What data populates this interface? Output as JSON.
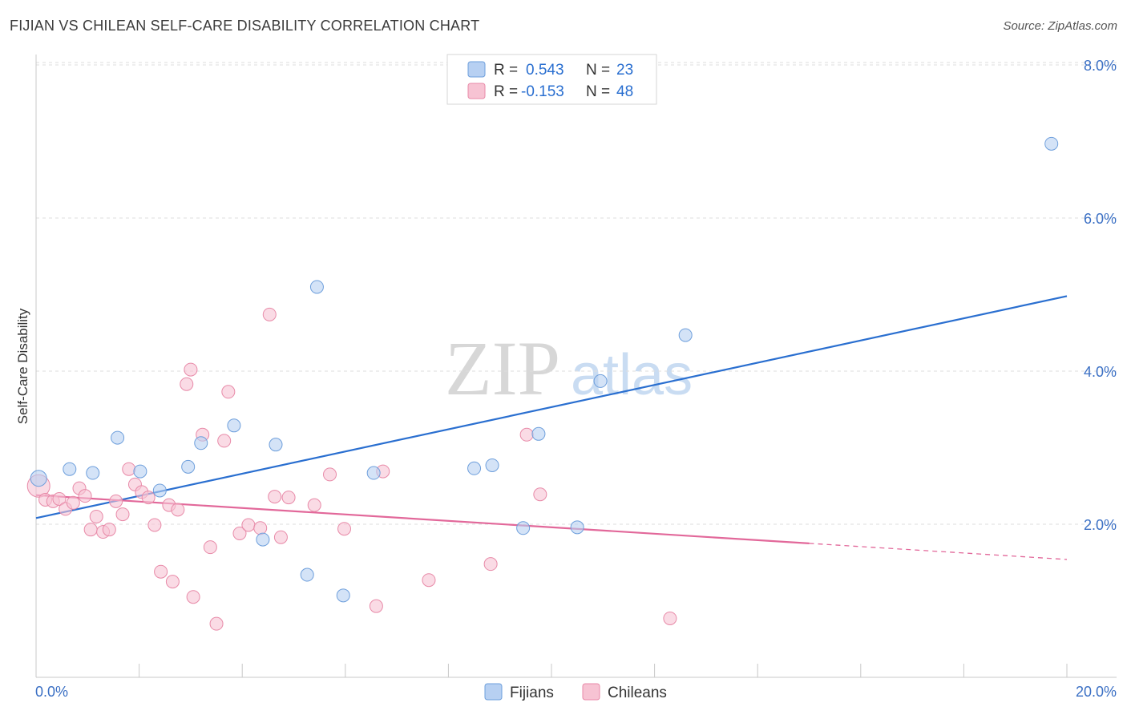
{
  "title": "FIJIAN VS CHILEAN SELF-CARE DISABILITY CORRELATION CHART",
  "source": "Source: ZipAtlas.com",
  "watermark": {
    "zip": "ZIP",
    "atlas": "atlas"
  },
  "colors": {
    "fijians_fill": "#b7d0f2",
    "fijians_stroke": "#6e9fdc",
    "fijians_line": "#2a6fd0",
    "chileans_fill": "#f7c3d3",
    "chileans_stroke": "#e88aa8",
    "chileans_line": "#e2689a",
    "tick_label": "#3a6fc4",
    "grid": "#dedede"
  },
  "legend_top": [
    {
      "r_label": "R = ",
      "r_value": "0.543",
      "n_label": "N = ",
      "n_value": "23"
    },
    {
      "r_label": "R = ",
      "r_value": "-0.153",
      "n_label": "N = ",
      "n_value": "48"
    }
  ],
  "chart_data": {
    "type": "scatter",
    "xlabel": "",
    "ylabel": "Self-Care Disability",
    "xlim": [
      0,
      20
    ],
    "ylim": [
      0,
      8.3
    ],
    "x_tick_labels": [
      "0.0%",
      "20.0%"
    ],
    "y_ticks": [
      2,
      4,
      6,
      8
    ],
    "y_tick_labels": [
      "2.0%",
      "4.0%",
      "6.0%",
      "8.0%"
    ],
    "grid": "horizontal dashed",
    "legend_placement": "bottom-center",
    "series": [
      {
        "name": "Fijians",
        "points": [
          [
            0.05,
            2.6
          ],
          [
            0.65,
            2.72
          ],
          [
            1.1,
            2.67
          ],
          [
            1.58,
            3.13
          ],
          [
            2.02,
            2.69
          ],
          [
            2.4,
            2.44
          ],
          [
            2.95,
            2.75
          ],
          [
            3.2,
            3.06
          ],
          [
            3.84,
            3.29
          ],
          [
            4.4,
            1.8
          ],
          [
            4.65,
            3.04
          ],
          [
            5.45,
            5.1
          ],
          [
            5.26,
            1.34
          ],
          [
            5.96,
            1.07
          ],
          [
            6.55,
            2.67
          ],
          [
            8.5,
            2.73
          ],
          [
            8.85,
            2.77
          ],
          [
            9.45,
            1.95
          ],
          [
            9.75,
            3.18
          ],
          [
            10.5,
            1.96
          ],
          [
            10.95,
            3.87
          ],
          [
            12.6,
            4.47
          ],
          [
            19.7,
            6.97
          ]
        ],
        "trend": {
          "x": [
            0,
            20
          ],
          "y": [
            2.08,
            4.98
          ]
        }
      },
      {
        "name": "Chileans",
        "points": [
          [
            0.05,
            2.5
          ],
          [
            0.18,
            2.32
          ],
          [
            0.33,
            2.3
          ],
          [
            0.45,
            2.33
          ],
          [
            0.57,
            2.2
          ],
          [
            0.72,
            2.28
          ],
          [
            0.84,
            2.47
          ],
          [
            0.95,
            2.37
          ],
          [
            1.06,
            1.93
          ],
          [
            1.17,
            2.1
          ],
          [
            1.3,
            1.9
          ],
          [
            1.42,
            1.93
          ],
          [
            1.55,
            2.3
          ],
          [
            1.68,
            2.13
          ],
          [
            1.8,
            2.72
          ],
          [
            1.92,
            2.52
          ],
          [
            2.05,
            2.42
          ],
          [
            2.18,
            2.35
          ],
          [
            2.3,
            1.99
          ],
          [
            2.42,
            1.38
          ],
          [
            2.58,
            2.25
          ],
          [
            2.65,
            1.25
          ],
          [
            2.75,
            2.19
          ],
          [
            2.92,
            3.83
          ],
          [
            3.0,
            4.02
          ],
          [
            3.05,
            1.05
          ],
          [
            3.23,
            3.17
          ],
          [
            3.38,
            1.7
          ],
          [
            3.5,
            0.7
          ],
          [
            3.65,
            3.09
          ],
          [
            3.73,
            3.73
          ],
          [
            3.95,
            1.88
          ],
          [
            4.12,
            1.99
          ],
          [
            4.35,
            1.95
          ],
          [
            4.53,
            4.74
          ],
          [
            4.63,
            2.36
          ],
          [
            4.75,
            1.83
          ],
          [
            4.9,
            2.35
          ],
          [
            5.4,
            2.25
          ],
          [
            5.7,
            2.65
          ],
          [
            5.98,
            1.94
          ],
          [
            6.6,
            0.93
          ],
          [
            6.73,
            2.69
          ],
          [
            7.62,
            1.27
          ],
          [
            8.82,
            1.48
          ],
          [
            9.52,
            3.17
          ],
          [
            9.78,
            2.39
          ],
          [
            12.3,
            0.77
          ]
        ],
        "trend": {
          "x": [
            0,
            15
          ],
          "y": [
            2.38,
            1.75
          ]
        },
        "trend_dashed": {
          "x": [
            15,
            20
          ],
          "y": [
            1.75,
            1.54
          ]
        }
      }
    ]
  }
}
